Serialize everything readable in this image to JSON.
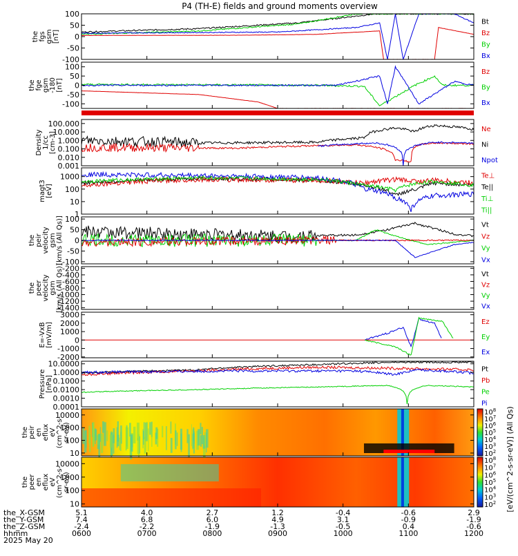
{
  "title": "P4 (TH-E) fields and ground moments overview",
  "colors": {
    "black": "#000000",
    "red": "#e00000",
    "green": "#00d000",
    "blue": "#0000e0"
  },
  "panels": [
    {
      "id": "fgs-btot",
      "ylabel": [
        "the",
        "fgs",
        "gsm",
        "[nT]"
      ],
      "ticks": [
        "100",
        "50",
        "0",
        "-50",
        "-100"
      ],
      "tick_values": [
        100,
        50,
        0,
        -50,
        -100
      ],
      "ylim": [
        -100,
        100
      ],
      "log": false,
      "legend": [
        {
          "text": "Bt",
          "color": "black"
        },
        {
          "text": "Bz",
          "color": "red"
        },
        {
          "text": "By",
          "color": "green"
        },
        {
          "text": "Bx",
          "color": "blue"
        }
      ]
    },
    {
      "id": "fgs-comp",
      "ylabel": [
        "the",
        "fge",
        "gsm",
        "-180",
        "[nT]"
      ],
      "ticks": [
        "100",
        "50",
        "0",
        "-50",
        "-100"
      ],
      "tick_values": [
        100,
        50,
        0,
        -50,
        -100
      ],
      "ylim": [
        -125,
        125
      ],
      "log": false,
      "legend": [
        {
          "text": "Bz",
          "color": "red"
        },
        {
          "text": "By",
          "color": "green"
        },
        {
          "text": "Bx",
          "color": "blue"
        }
      ]
    },
    {
      "id": "density",
      "ylabel": [
        "Density",
        "1/cc",
        "[cm-3]"
      ],
      "ticks": [
        "100.000",
        "10.000",
        "1.000",
        "0.100",
        "0.010",
        "0.001"
      ],
      "tick_values": [
        100,
        10,
        1,
        0.1,
        0.01,
        0.001
      ],
      "ylim": [
        0.001,
        300
      ],
      "log": true,
      "legend": [
        {
          "text": "Ne",
          "color": "red"
        },
        {
          "text": "Ni",
          "color": "black"
        },
        {
          "text": "Npot",
          "color": "blue"
        }
      ]
    },
    {
      "id": "temperature",
      "ylabel": [
        "magt3",
        "[eV]"
      ],
      "ticks": [
        "1000",
        "100",
        "10",
        "1"
      ],
      "tick_values": [
        1000,
        100,
        10,
        1
      ],
      "ylim": [
        1,
        5000
      ],
      "log": true,
      "legend": [
        {
          "text": "Te⊥",
          "color": "red"
        },
        {
          "text": "Te||",
          "color": "black"
        },
        {
          "text": "Ti⊥",
          "color": "green"
        },
        {
          "text": "Ti||",
          "color": "green"
        }
      ]
    },
    {
      "id": "peir-velocity",
      "ylabel": [
        "the",
        "peir",
        "velocity",
        "gsm",
        "[km/s (All Qs)]"
      ],
      "ticks": [
        "100",
        "50",
        "0",
        "-50",
        "-100"
      ],
      "tick_values": [
        100,
        50,
        0,
        -50,
        -100
      ],
      "ylim": [
        -110,
        110
      ],
      "log": false,
      "legend": [
        {
          "text": "Vt",
          "color": "black"
        },
        {
          "text": "Vz",
          "color": "red"
        },
        {
          "text": "Vy",
          "color": "green"
        },
        {
          "text": "Vx",
          "color": "blue"
        }
      ]
    },
    {
      "id": "peer-velocity",
      "ylabel": [
        "the",
        "peer",
        "velocity",
        "gsm",
        "[km/s (All Qs)]"
      ],
      "ticks": [
        "-200",
        "-400",
        "-600",
        "-800",
        "-1000",
        "-1200",
        "-1400"
      ],
      "tick_values": [
        -200,
        -400,
        -600,
        -800,
        -1000,
        -1200,
        -1400
      ],
      "ylim": [
        -1450,
        -150
      ],
      "log": false,
      "legend": [
        {
          "text": "Vt",
          "color": "black"
        },
        {
          "text": "Vz",
          "color": "red"
        },
        {
          "text": "Vy",
          "color": "green"
        },
        {
          "text": "Vx",
          "color": "blue"
        }
      ]
    },
    {
      "id": "efield",
      "ylabel": [
        "E=-VxB",
        "[mV/m]"
      ],
      "ticks": [
        "3000",
        "2000",
        "1000",
        "0",
        "-1000",
        "-2000"
      ],
      "tick_values": [
        3000,
        2000,
        1000,
        0,
        -1000,
        -2000
      ],
      "ylim": [
        -2100,
        3300
      ],
      "log": false,
      "legend": [
        {
          "text": "Ez",
          "color": "red"
        },
        {
          "text": "Ey",
          "color": "green"
        },
        {
          "text": "Ex",
          "color": "blue"
        }
      ]
    },
    {
      "id": "pressure",
      "ylabel": [
        "Pressure",
        "[nPa]"
      ],
      "ticks": [
        "10.0000",
        "1.0000",
        "0.1000",
        "0.0100",
        "0.0010",
        "0.0001"
      ],
      "tick_values": [
        10,
        1,
        0.1,
        0.01,
        0.001,
        0.0001
      ],
      "ylim": [
        0.0001,
        20
      ],
      "log": true,
      "legend": [
        {
          "text": "Pt",
          "color": "black"
        },
        {
          "text": "Pb",
          "color": "red"
        },
        {
          "text": "Pe",
          "color": "green"
        },
        {
          "text": "Pi",
          "color": "blue"
        }
      ]
    },
    {
      "id": "peir-spec",
      "ylabel": [
        "the",
        "peir",
        "en",
        "eflux",
        "eV",
        "(cm^2-s-",
        "sr-eV)"
      ],
      "ticks": [
        "10000",
        "1000",
        "100",
        "10"
      ],
      "tick_values": [
        10000,
        1000,
        100,
        10
      ],
      "ylim": [
        6,
        30000
      ],
      "log": true,
      "legend": []
    },
    {
      "id": "peer-spec",
      "ylabel": [
        "the",
        "peer",
        "en",
        "eflux",
        "eV",
        "(cm^2-s-",
        "sr-eV)"
      ],
      "ticks": [
        "10000",
        "1000",
        "100",
        "10"
      ],
      "tick_values": [
        10000,
        1000,
        100,
        10
      ],
      "ylim": [
        6,
        30000
      ],
      "log": true,
      "legend": []
    }
  ],
  "colorbar": {
    "ticks": [
      "10^8",
      "10^7",
      "10^6",
      "10^5",
      "10^4",
      "10^3",
      "10^2"
    ],
    "label": "[eV/(cm^2-s-sr-eV)] (All Qs)"
  },
  "x_axis": {
    "major_ticks": [
      0,
      1,
      2,
      3,
      4,
      5,
      6
    ],
    "rows": [
      {
        "label": "the_X-GSM",
        "values": [
          "5.1",
          "4.0",
          "2.7",
          "1.2",
          "-0.4",
          "-0.6",
          "2.9"
        ]
      },
      {
        "label": "the_Y-GSM",
        "values": [
          "7.4",
          "6.8",
          "6.0",
          "4.9",
          "3.1",
          "-0.9",
          "-1.9"
        ]
      },
      {
        "label": "the_Z-GSM",
        "values": [
          "-2.4",
          "-2.2",
          "-1.9",
          "-1.3",
          "-0.5",
          "0.4",
          "-0.6"
        ]
      },
      {
        "label": "hhmm",
        "values": [
          "0600",
          "0700",
          "0800",
          "0900",
          "1000",
          "1100",
          "1200"
        ]
      }
    ],
    "date": "2025 May 20"
  },
  "chart_data": {
    "type": "line",
    "title": "P4 (TH-E) fields and ground moments overview",
    "x": [
      "0600",
      "0700",
      "0800",
      "0900",
      "1000",
      "1100",
      "1200"
    ],
    "series": [
      {
        "name": "Bt",
        "values": [
          20,
          25,
          35,
          55,
          95,
          100,
          100
        ]
      },
      {
        "name": "Bz",
        "values": [
          5,
          5,
          5,
          10,
          25,
          -100,
          -50
        ]
      },
      {
        "name": "By",
        "values": [
          15,
          25,
          40,
          70,
          100,
          100,
          100
        ]
      },
      {
        "name": "Ni",
        "values": [
          1.0,
          0.8,
          0.6,
          0.5,
          2.0,
          50,
          20
        ]
      },
      {
        "name": "Ne",
        "values": [
          0.2,
          0.1,
          0.1,
          0.2,
          0.2,
          0.003,
          0.5
        ]
      },
      {
        "name": "Pt",
        "values": [
          0.8,
          1.5,
          3.0,
          8.0,
          15,
          15,
          15
        ]
      },
      {
        "name": "Pe",
        "values": [
          0.005,
          0.01,
          0.015,
          0.02,
          0.03,
          0.0003,
          0.02
        ]
      }
    ]
  }
}
